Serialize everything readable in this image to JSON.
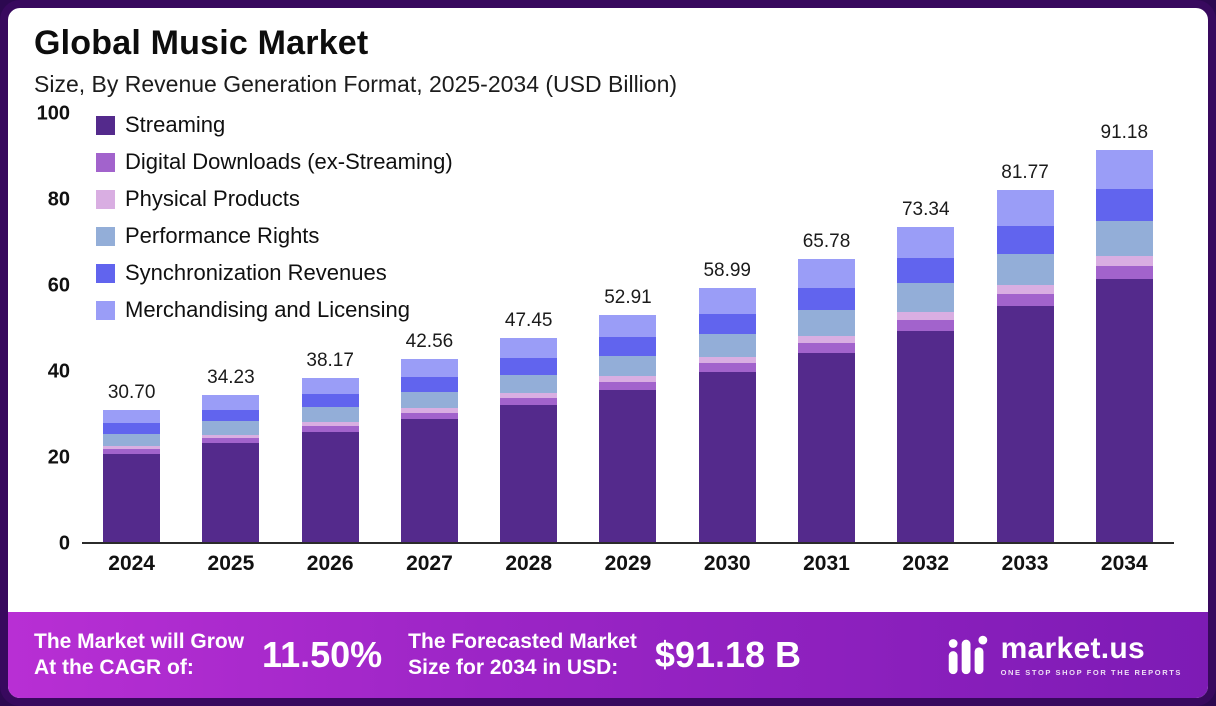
{
  "header": {
    "title": "Global Music Market",
    "subtitle": "Size, By Revenue Generation Format, 2025-2034 (USD Billion)"
  },
  "chart_data": {
    "type": "bar",
    "stacked": true,
    "title": "Global Music Market Size, By Revenue Generation Format, 2025-2034 (USD Billion)",
    "categories": [
      "2024",
      "2025",
      "2026",
      "2027",
      "2028",
      "2029",
      "2030",
      "2031",
      "2032",
      "2033",
      "2034"
    ],
    "totals_labels": [
      "30.70",
      "34.23",
      "38.17",
      "42.56",
      "47.45",
      "52.91",
      "58.99",
      "65.78",
      "73.34",
      "81.77",
      "91.18"
    ],
    "totals": [
      30.7,
      34.23,
      38.17,
      42.56,
      47.45,
      52.91,
      58.99,
      65.78,
      73.34,
      81.77,
      91.18
    ],
    "series": [
      {
        "name": "Streaming",
        "color": "#542a8c",
        "values": [
          20.57,
          22.93,
          25.57,
          28.52,
          31.79,
          35.45,
          39.52,
          44.07,
          49.14,
          54.79,
          61.09
        ]
      },
      {
        "name": "Digital Downloads (ex-Streaming)",
        "color": "#a263cc",
        "values": [
          1.07,
          1.2,
          1.34,
          1.49,
          1.66,
          1.85,
          2.06,
          2.3,
          2.57,
          2.86,
          3.19
        ]
      },
      {
        "name": "Physical Products",
        "color": "#d9aee2",
        "values": [
          0.77,
          0.86,
          0.95,
          1.06,
          1.19,
          1.32,
          1.47,
          1.64,
          1.83,
          2.04,
          2.28
        ]
      },
      {
        "name": "Performance Rights",
        "color": "#93aed8",
        "values": [
          2.76,
          3.08,
          3.44,
          3.83,
          4.27,
          4.76,
          5.31,
          5.92,
          6.6,
          7.36,
          8.21
        ]
      },
      {
        "name": "Synchronization Revenues",
        "color": "#6164ee",
        "values": [
          2.46,
          2.74,
          3.05,
          3.4,
          3.8,
          4.23,
          4.72,
          5.26,
          5.87,
          6.54,
          7.29
        ]
      },
      {
        "name": "Merchandising and Licensing",
        "color": "#9a9df7",
        "values": [
          3.07,
          3.42,
          3.82,
          4.26,
          4.74,
          5.3,
          5.91,
          6.59,
          7.33,
          8.18,
          9.12
        ]
      }
    ],
    "ylim": [
      0,
      100
    ],
    "yticks": [
      0,
      20,
      40,
      60,
      80,
      100
    ],
    "legend_position": "top-left",
    "grid": false
  },
  "footer": {
    "cagr_label": "The Market will Grow\nAt the CAGR of:",
    "cagr_value": "11.50%",
    "forecast_label": "The Forecasted Market\nSize for 2034 in USD:",
    "forecast_value": "$91.18 B",
    "brand_name": "market.us",
    "brand_tagline": "One Stop Shop For The Reports"
  }
}
